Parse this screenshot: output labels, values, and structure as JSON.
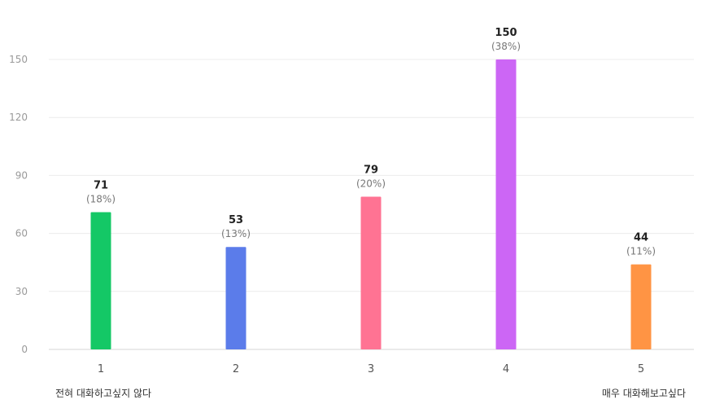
{
  "chart_data": {
    "type": "bar",
    "categories": [
      "1",
      "2",
      "3",
      "4",
      "5"
    ],
    "values": [
      71,
      53,
      79,
      150,
      44
    ],
    "percent_labels": [
      "(18%)",
      "(13%)",
      "(20%)",
      "(38%)",
      "(11%)"
    ],
    "colors": [
      "#14c866",
      "#5b7cea",
      "#ff7393",
      "#cc66f5",
      "#ff9444"
    ],
    "yticks": [
      0,
      30,
      60,
      90,
      120,
      150
    ],
    "ylim": [
      0,
      150
    ],
    "grid": true,
    "legend": "none"
  },
  "scale_labels": {
    "min": "전혀 대화하고싶지 않다",
    "max": "매우 대화해보고싶다"
  }
}
